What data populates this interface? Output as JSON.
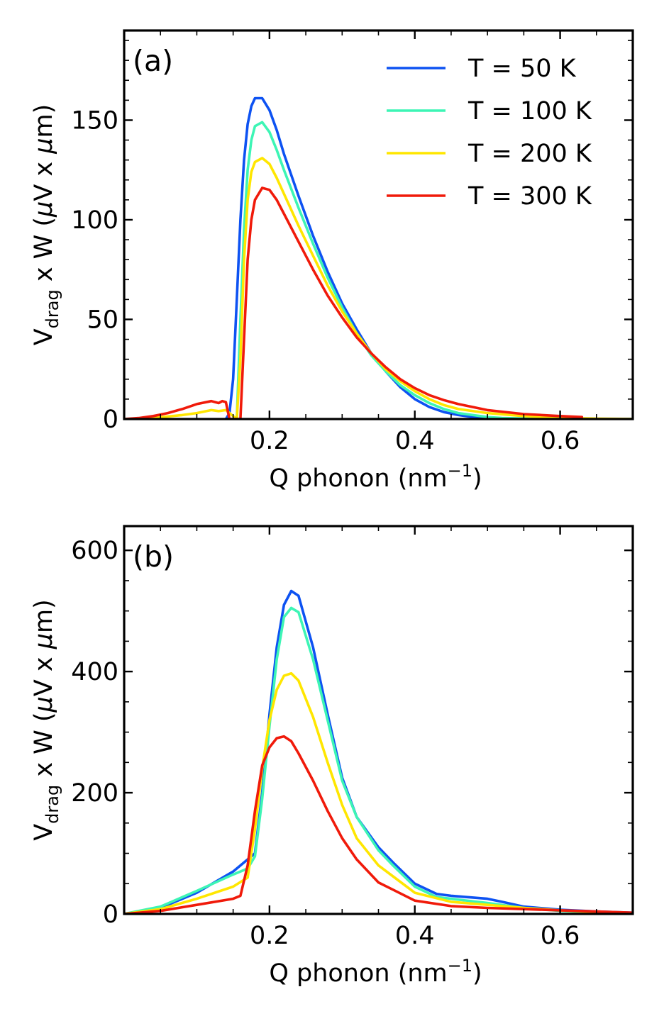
{
  "chart_data": [
    {
      "panel": "(a)",
      "type": "line",
      "xlabel": "Q phonon (nm",
      "xlabel_sup": "−1",
      "xlabel_end": ")",
      "ylabel_main": "V",
      "ylabel_sub": "drag",
      "ylabel_rest": " x W (",
      "ylabel_mu": "μ",
      "ylabel_mid": "V x ",
      "ylabel_mu2": "μ",
      "ylabel_end": "m)",
      "xlim": [
        0.0,
        0.7
      ],
      "ylim": [
        0,
        195
      ],
      "xticks": [
        0.2,
        0.4,
        0.6
      ],
      "xtick_labels": [
        "0.2",
        "0.4",
        "0.6"
      ],
      "yticks": [
        0,
        50,
        100,
        150
      ],
      "ytick_labels": [
        "0",
        "50",
        "100",
        "150"
      ],
      "x_minor_step": 0.05,
      "y_minor_step": 10,
      "legend": {
        "placement": "top-right"
      },
      "series": [
        {
          "name": "T = 50 K",
          "color": "#0d52f2",
          "x": [
            0.14,
            0.145,
            0.15,
            0.155,
            0.16,
            0.165,
            0.17,
            0.175,
            0.18,
            0.19,
            0.2,
            0.21,
            0.22,
            0.24,
            0.26,
            0.28,
            0.3,
            0.32,
            0.34,
            0.36,
            0.38,
            0.4,
            0.42,
            0.44,
            0.46,
            0.48,
            0.5,
            0.52,
            0.56,
            0.6,
            0.7
          ],
          "y": [
            0,
            3,
            20,
            60,
            100,
            130,
            148,
            157,
            161,
            161,
            155,
            145,
            133,
            112,
            92,
            74,
            58,
            45,
            33,
            24,
            16,
            10,
            6,
            3.5,
            2,
            1,
            0.5,
            0.2,
            0.05,
            0,
            0
          ]
        },
        {
          "name": "T = 100 K",
          "color": "#3df5b5",
          "x": [
            0.155,
            0.16,
            0.165,
            0.17,
            0.175,
            0.18,
            0.19,
            0.2,
            0.21,
            0.22,
            0.24,
            0.26,
            0.28,
            0.3,
            0.32,
            0.34,
            0.36,
            0.38,
            0.4,
            0.42,
            0.44,
            0.46,
            0.48,
            0.5,
            0.52,
            0.56,
            0.6,
            0.7
          ],
          "y": [
            0,
            50,
            95,
            125,
            140,
            147,
            149,
            144,
            135,
            125,
            106,
            88,
            71,
            56,
            43,
            32,
            24,
            17,
            12,
            8,
            5,
            3,
            2,
            1,
            0.5,
            0.2,
            0.05,
            0
          ]
        },
        {
          "name": "T = 200 K",
          "color": "#ffe600",
          "x": [
            0.0,
            0.04,
            0.08,
            0.1,
            0.12,
            0.13,
            0.14,
            0.155,
            0.16,
            0.165,
            0.17,
            0.175,
            0.18,
            0.19,
            0.2,
            0.21,
            0.22,
            0.24,
            0.26,
            0.28,
            0.3,
            0.32,
            0.34,
            0.36,
            0.38,
            0.4,
            0.42,
            0.44,
            0.46,
            0.5,
            0.55,
            0.6,
            0.65,
            0.7
          ],
          "y": [
            0,
            0.5,
            2,
            3,
            4.5,
            4,
            4.5,
            0,
            30,
            80,
            110,
            124,
            129,
            131,
            128,
            121,
            113,
            97,
            82,
            67,
            54,
            43,
            33,
            25,
            19,
            14,
            10,
            7,
            5,
            3,
            1.5,
            0.6,
            0.2,
            0
          ]
        },
        {
          "name": "T = 300 K",
          "color": "#f01a0a",
          "x": [
            0.0,
            0.02,
            0.04,
            0.06,
            0.08,
            0.1,
            0.12,
            0.13,
            0.135,
            0.14,
            0.145,
            0.16,
            0.165,
            0.17,
            0.175,
            0.18,
            0.19,
            0.2,
            0.21,
            0.22,
            0.24,
            0.26,
            0.28,
            0.3,
            0.32,
            0.34,
            0.36,
            0.38,
            0.4,
            0.42,
            0.44,
            0.46,
            0.48,
            0.5,
            0.55,
            0.6,
            0.63
          ],
          "y": [
            0,
            0.5,
            1.5,
            3,
            5,
            7.5,
            9,
            8,
            9,
            8.5,
            0,
            0,
            40,
            80,
            100,
            110,
            116,
            115,
            110,
            103,
            89,
            75,
            62,
            51,
            41,
            33,
            26,
            20,
            15.5,
            12,
            9.5,
            7.5,
            6,
            4.5,
            2.5,
            1.5,
            1
          ]
        }
      ]
    },
    {
      "panel": "(b)",
      "type": "line",
      "xlabel": "Q phonon (nm",
      "xlabel_sup": "−1",
      "xlabel_end": ")",
      "ylabel_main": "V",
      "ylabel_sub": "drag",
      "ylabel_rest": " x W (",
      "ylabel_mu": "μ",
      "ylabel_mid": "V x ",
      "ylabel_mu2": "μ",
      "ylabel_end": "m)",
      "xlim": [
        0.0,
        0.7
      ],
      "ylim": [
        0,
        640
      ],
      "xticks": [
        0.2,
        0.4,
        0.6
      ],
      "xtick_labels": [
        "0.2",
        "0.4",
        "0.6"
      ],
      "yticks": [
        0,
        200,
        400,
        600
      ],
      "ytick_labels": [
        "0",
        "200",
        "400",
        "600"
      ],
      "x_minor_step": 0.05,
      "y_minor_step": 50,
      "series": [
        {
          "name": "T = 50 K",
          "color": "#0d52f2",
          "x": [
            0.0,
            0.05,
            0.1,
            0.15,
            0.18,
            0.19,
            0.2,
            0.21,
            0.22,
            0.23,
            0.24,
            0.26,
            0.28,
            0.3,
            0.32,
            0.35,
            0.37,
            0.4,
            0.43,
            0.45,
            0.5,
            0.52,
            0.55,
            0.6,
            0.65,
            0.7
          ],
          "y": [
            0,
            10,
            35,
            70,
            100,
            200,
            330,
            440,
            510,
            533,
            525,
            440,
            330,
            225,
            160,
            110,
            85,
            50,
            33,
            30,
            25,
            20,
            12,
            7,
            4,
            2
          ]
        },
        {
          "name": "T = 100 K",
          "color": "#3df5b5",
          "x": [
            0.0,
            0.05,
            0.1,
            0.15,
            0.17,
            0.18,
            0.19,
            0.2,
            0.21,
            0.22,
            0.23,
            0.24,
            0.26,
            0.28,
            0.3,
            0.32,
            0.35,
            0.37,
            0.4,
            0.43,
            0.45,
            0.5,
            0.55,
            0.6,
            0.65,
            0.7
          ],
          "y": [
            0,
            12,
            38,
            65,
            75,
            95,
            190,
            310,
            420,
            490,
            505,
            498,
            420,
            320,
            220,
            160,
            105,
            80,
            45,
            28,
            25,
            18,
            10,
            5,
            2,
            1
          ]
        },
        {
          "name": "T = 200 K",
          "color": "#ffe600",
          "x": [
            0.0,
            0.05,
            0.1,
            0.15,
            0.17,
            0.18,
            0.19,
            0.2,
            0.21,
            0.22,
            0.23,
            0.24,
            0.26,
            0.28,
            0.3,
            0.32,
            0.35,
            0.37,
            0.4,
            0.45,
            0.5,
            0.55,
            0.6,
            0.65,
            0.7
          ],
          "y": [
            0,
            8,
            25,
            45,
            60,
            140,
            240,
            320,
            370,
            393,
            397,
            385,
            325,
            250,
            180,
            125,
            80,
            62,
            35,
            20,
            15,
            10,
            6,
            3,
            1
          ]
        },
        {
          "name": "T = 300 K",
          "color": "#f01a0a",
          "x": [
            0.0,
            0.05,
            0.1,
            0.15,
            0.16,
            0.17,
            0.18,
            0.19,
            0.2,
            0.21,
            0.22,
            0.23,
            0.24,
            0.26,
            0.28,
            0.3,
            0.32,
            0.35,
            0.37,
            0.4,
            0.45,
            0.5,
            0.55,
            0.6,
            0.65,
            0.7
          ],
          "y": [
            0,
            5,
            15,
            25,
            30,
            80,
            170,
            245,
            275,
            290,
            293,
            285,
            265,
            220,
            170,
            125,
            90,
            52,
            40,
            22,
            13,
            10,
            8,
            6,
            4,
            2
          ]
        }
      ]
    }
  ]
}
